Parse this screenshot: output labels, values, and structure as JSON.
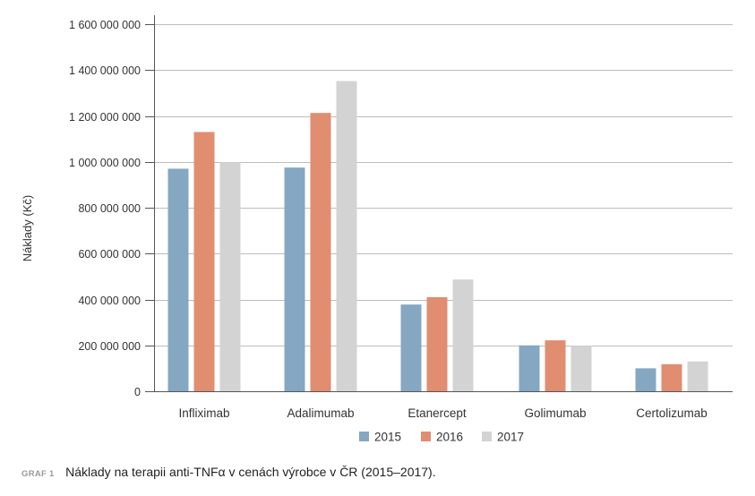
{
  "chart_data": {
    "type": "bar",
    "ylabel": "Náklady (Kč)",
    "ylim": [
      0,
      1600000000
    ],
    "yticks": [
      0,
      200000000,
      400000000,
      600000000,
      800000000,
      1000000000,
      1200000000,
      1400000000,
      1600000000
    ],
    "ytick_labels": [
      "0",
      "200 000 000",
      "400 000 000",
      "600 000 000",
      "800 000 000",
      "1 000 000 000",
      "1 200 000 000",
      "1 400 000 000",
      "1 600 000 000"
    ],
    "categories": [
      "Infliximab",
      "Adalimumab",
      "Etanercept",
      "Golimumab",
      "Certolizumab"
    ],
    "series": [
      {
        "name": "2015",
        "color": "#85a7c2",
        "values": [
          970000000,
          975000000,
          378000000,
          200000000,
          100000000
        ]
      },
      {
        "name": "2016",
        "color": "#e08d70",
        "values": [
          1130000000,
          1213000000,
          410000000,
          222000000,
          118000000
        ]
      },
      {
        "name": "2017",
        "color": "#d3d3d3",
        "values": [
          998000000,
          1352000000,
          487000000,
          198000000,
          130000000
        ]
      }
    ],
    "grid": "horizontal",
    "legend_position": "bottom-center"
  },
  "caption": {
    "prefix": "GRAF 1",
    "text": "Náklady na terapii anti-TNFα v cenách výrobce v ČR (2015–2017)."
  }
}
